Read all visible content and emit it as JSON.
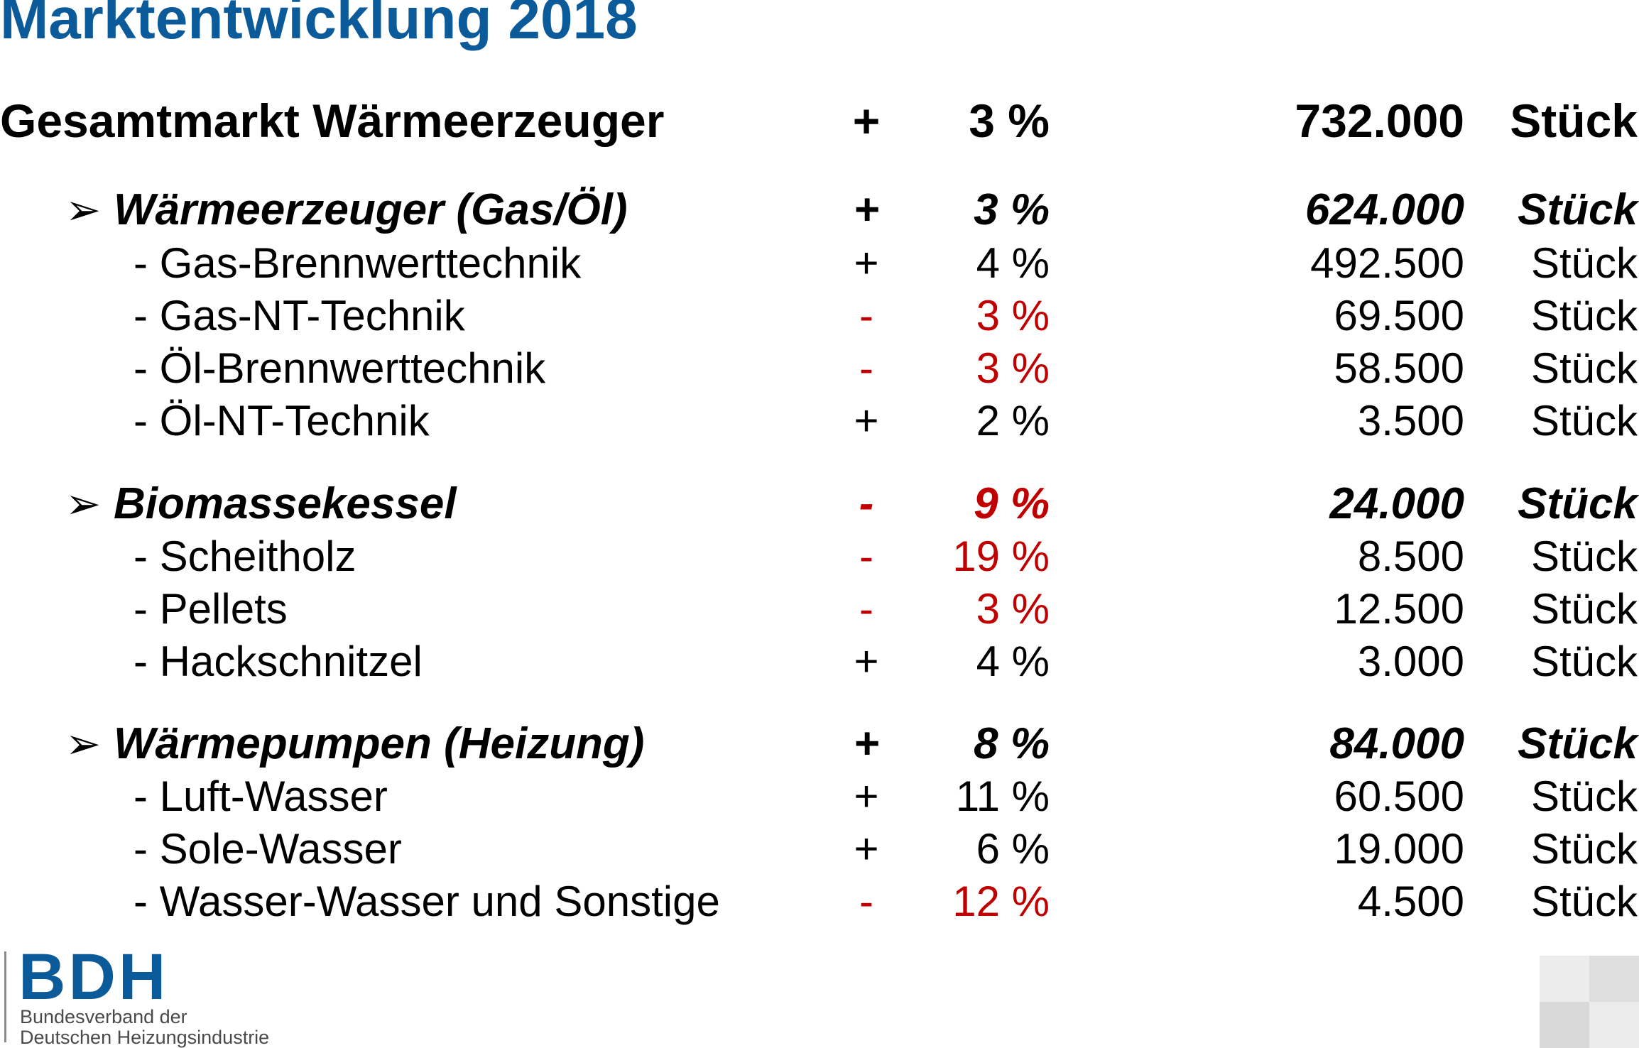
{
  "page_title": "Marktentwicklung 2018",
  "total": {
    "label": "Gesamtmarkt Wärmeerzeuger",
    "sign": "+",
    "change": "3 %",
    "quantity": "732.000",
    "unit": "Stück"
  },
  "groups": [
    {
      "arrow": "➢",
      "label": "Wärmeerzeuger (Gas/Öl)",
      "sign": "+",
      "change": "3 %",
      "quantity": "624.000",
      "unit": "Stück",
      "items": [
        {
          "label": "- Gas-Brennwerttechnik",
          "sign": "+",
          "change": "4 %",
          "quantity": "492.500",
          "unit": "Stück"
        },
        {
          "label": "- Gas-NT-Technik",
          "sign": "-",
          "change": "3 %",
          "quantity": "69.500",
          "unit": "Stück"
        },
        {
          "label": "- Öl-Brennwerttechnik",
          "sign": "-",
          "change": "3 %",
          "quantity": "58.500",
          "unit": "Stück"
        },
        {
          "label": "- Öl-NT-Technik",
          "sign": "+",
          "change": "2 %",
          "quantity": "3.500",
          "unit": "Stück"
        }
      ]
    },
    {
      "arrow": "➢",
      "label": "Biomassekessel",
      "sign": "-",
      "change": "9 %",
      "quantity": "24.000",
      "unit": "Stück",
      "items": [
        {
          "label": "- Scheitholz",
          "sign": "-",
          "change": "19 %",
          "quantity": "8.500",
          "unit": "Stück"
        },
        {
          "label": "- Pellets",
          "sign": "-",
          "change": "3 %",
          "quantity": "12.500",
          "unit": "Stück"
        },
        {
          "label": "- Hackschnitzel",
          "sign": "+",
          "change": "4 %",
          "quantity": "3.000",
          "unit": "Stück"
        }
      ]
    },
    {
      "arrow": "➢",
      "label": "Wärmepumpen (Heizung)",
      "sign": "+",
      "change": "8 %",
      "quantity": "84.000",
      "unit": "Stück",
      "items": [
        {
          "label": "- Luft-Wasser",
          "sign": "+",
          "change": "11 %",
          "quantity": "60.500",
          "unit": "Stück"
        },
        {
          "label": "- Sole-Wasser",
          "sign": "+",
          "change": "6 %",
          "quantity": "19.000",
          "unit": "Stück"
        },
        {
          "label": "- Wasser-Wasser und Sonstige",
          "sign": "-",
          "change": "12 %",
          "quantity": "4.500",
          "unit": "Stück"
        }
      ]
    }
  ],
  "colors": {
    "title_blue": "#0b5a9a",
    "negative_red": "#c00000",
    "text_black": "#000000"
  },
  "logo": {
    "wordmark": "BDH",
    "line1": "Bundesverband der",
    "line2": "Deutschen Heizungsindustrie"
  }
}
